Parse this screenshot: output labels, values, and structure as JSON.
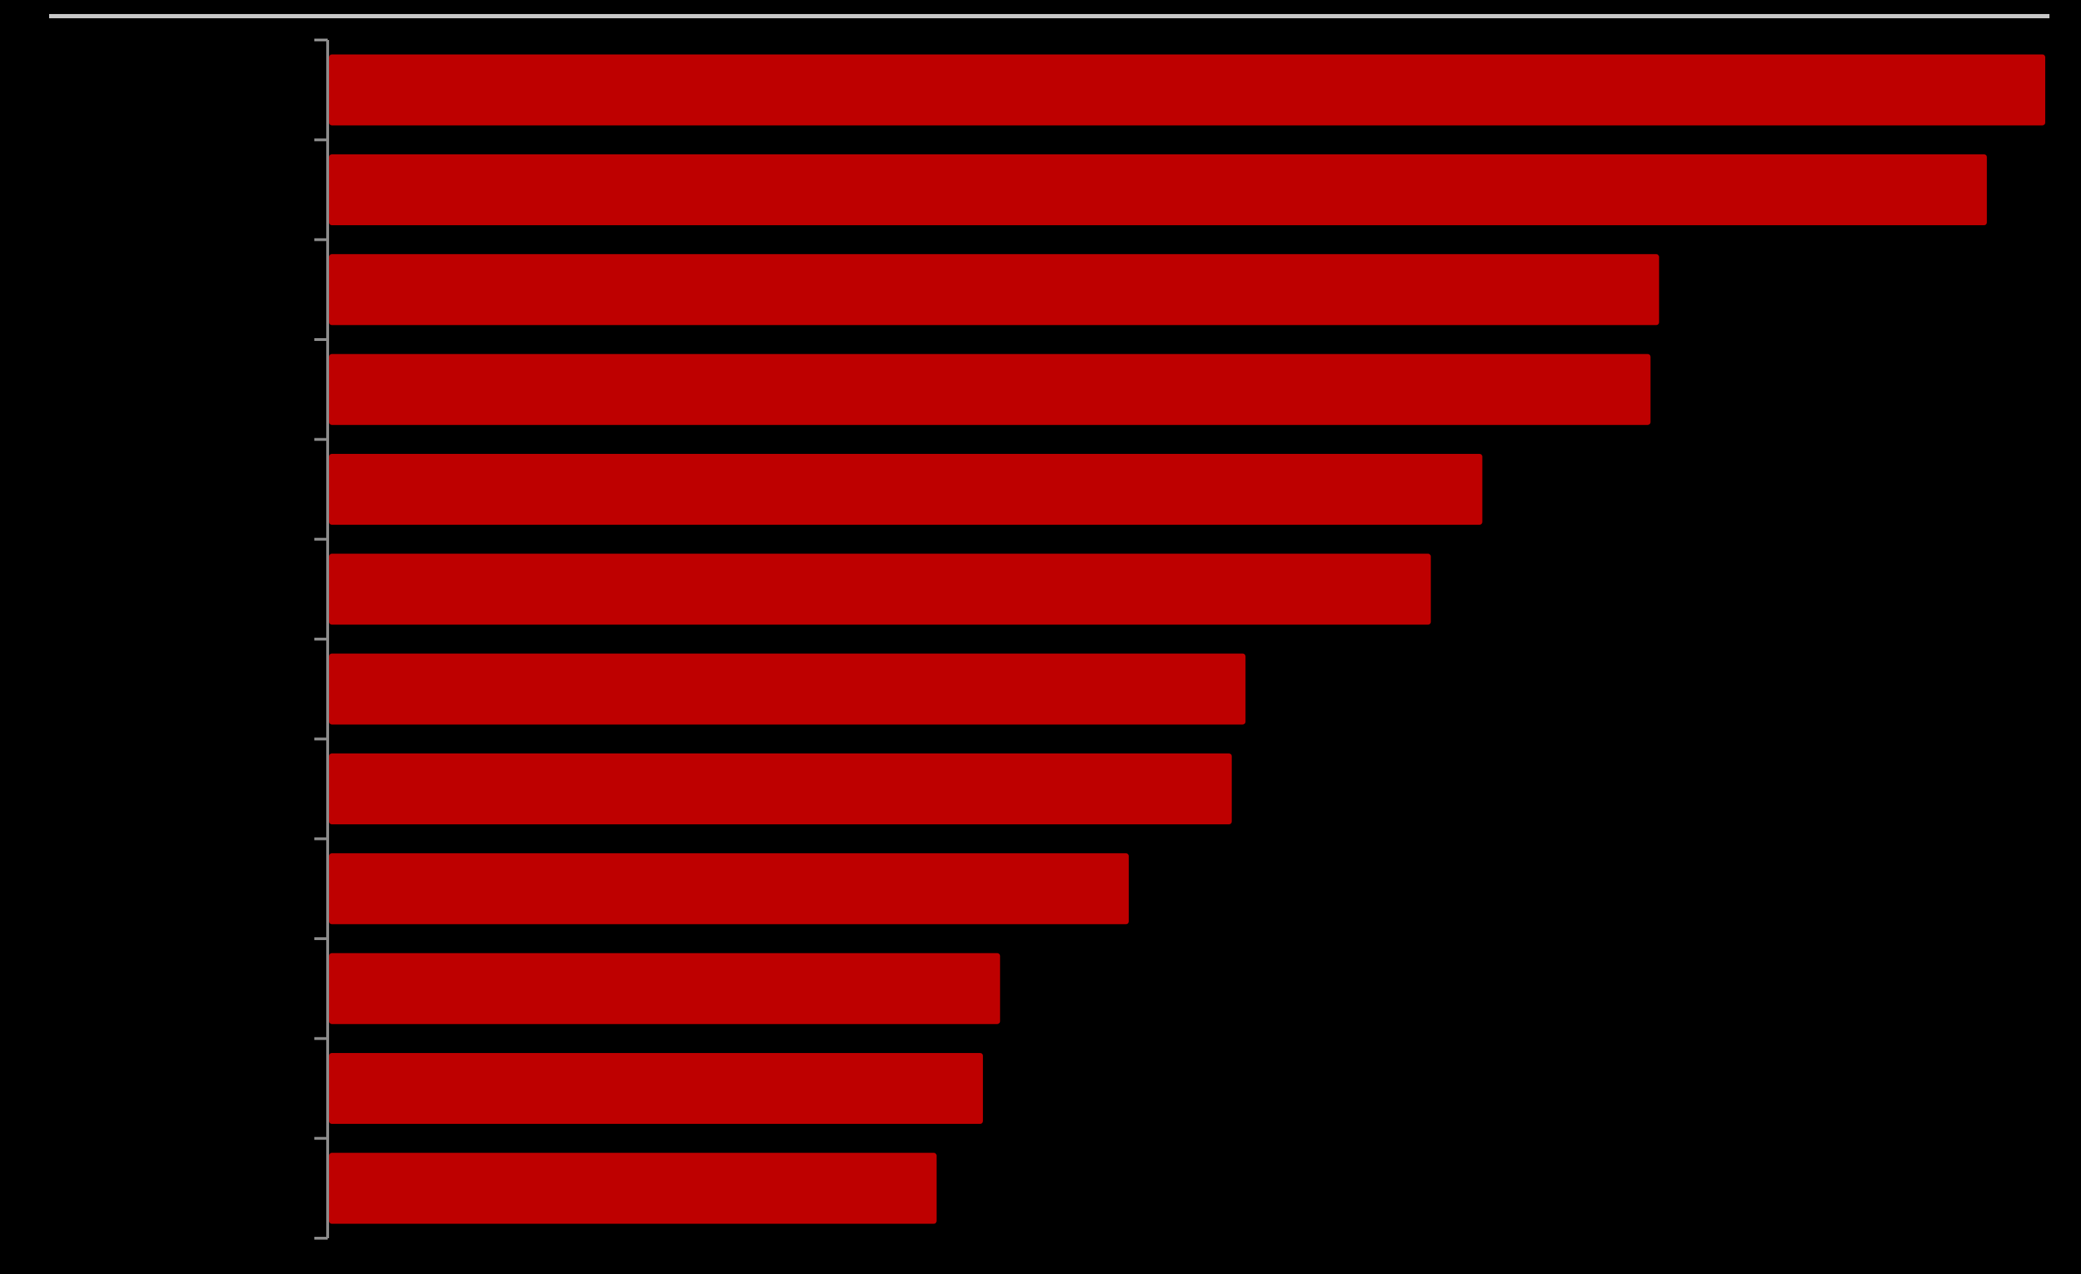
{
  "chart_data": {
    "type": "bar",
    "orientation": "horizontal",
    "categories": [
      null,
      null,
      null,
      null,
      null,
      null,
      null,
      null,
      null,
      null,
      null,
      null
    ],
    "values": [
      100,
      96.6,
      77.5,
      77.0,
      67.2,
      64.2,
      53.4,
      52.6,
      46.6,
      39.1,
      38.1,
      35.4
    ],
    "color": "#be0000",
    "xlim": [
      0,
      100
    ]
  }
}
